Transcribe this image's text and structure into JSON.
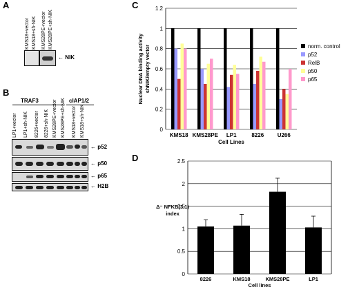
{
  "panel_a": {
    "letter": "A",
    "lanes": [
      "KMS18+vector",
      "KMS18+sh-NIK",
      "KMS28PE+vector",
      "KMS28PE+sh-NIK"
    ],
    "band_label": "NIK"
  },
  "panel_b": {
    "letter": "B",
    "group_traf3": "TRAF3",
    "group_ciap": "cIAP1/2",
    "lanes": [
      "LP1+vector",
      "LP1+sh-NIK",
      "8226+vector",
      "8226+sh-NIK",
      "KMS28PE+vector",
      "KMS28PE+sh-NIK",
      "KMS18+vector",
      "KMS18+sh-NIK"
    ],
    "bands": [
      "p52",
      "p50",
      "p65",
      "H2B"
    ]
  },
  "panel_c": {
    "letter": "C",
    "chart_data": {
      "type": "bar",
      "ylabel": "Nuclear DNA binding activity shNIK/empty vector",
      "xlabel": "Cell Lines",
      "ylim": [
        0,
        1.2
      ],
      "yticks": [
        "0",
        "0.2",
        "0.4",
        "0.6",
        "0.8",
        "1",
        "1.2"
      ],
      "categories": [
        "KMS18",
        "KMS28PE",
        "LP1",
        "8226",
        "U266"
      ],
      "legend_position": "right",
      "series": [
        {
          "name": "norm. control",
          "color": "#000000",
          "values": [
            1,
            1,
            1,
            1,
            1
          ]
        },
        {
          "name": "p52",
          "color": "#9999ff",
          "values": [
            0.8,
            0.6,
            0.42,
            0.45,
            0.3
          ]
        },
        {
          "name": "RelB",
          "color": "#cc3333",
          "values": [
            0.5,
            0.45,
            0.54,
            0.58,
            0.4
          ]
        },
        {
          "name": "p50",
          "color": "#ffff99",
          "values": [
            0.85,
            0.65,
            0.64,
            0.72,
            0.35
          ]
        },
        {
          "name": "p65",
          "color": "#ff99cc",
          "values": [
            0.8,
            0.7,
            0.55,
            0.67,
            0.6
          ]
        }
      ]
    }
  },
  "panel_d": {
    "letter": "D",
    "chart_data": {
      "type": "bar",
      "ylabel": "Δ⁻ NFKB(3.1) index",
      "xlabel": "Cell lines",
      "ylim": [
        0,
        2.5
      ],
      "yticks": [
        "0",
        "0.5",
        "1",
        "1.5",
        "2",
        "2.5"
      ],
      "categories": [
        "8226",
        "KMS18",
        "KMS28PE",
        "LP1"
      ],
      "values": [
        1.05,
        1.07,
        1.82,
        1.03
      ],
      "errors": [
        0.15,
        0.25,
        0.3,
        0.25
      ],
      "color": "#000000"
    }
  }
}
